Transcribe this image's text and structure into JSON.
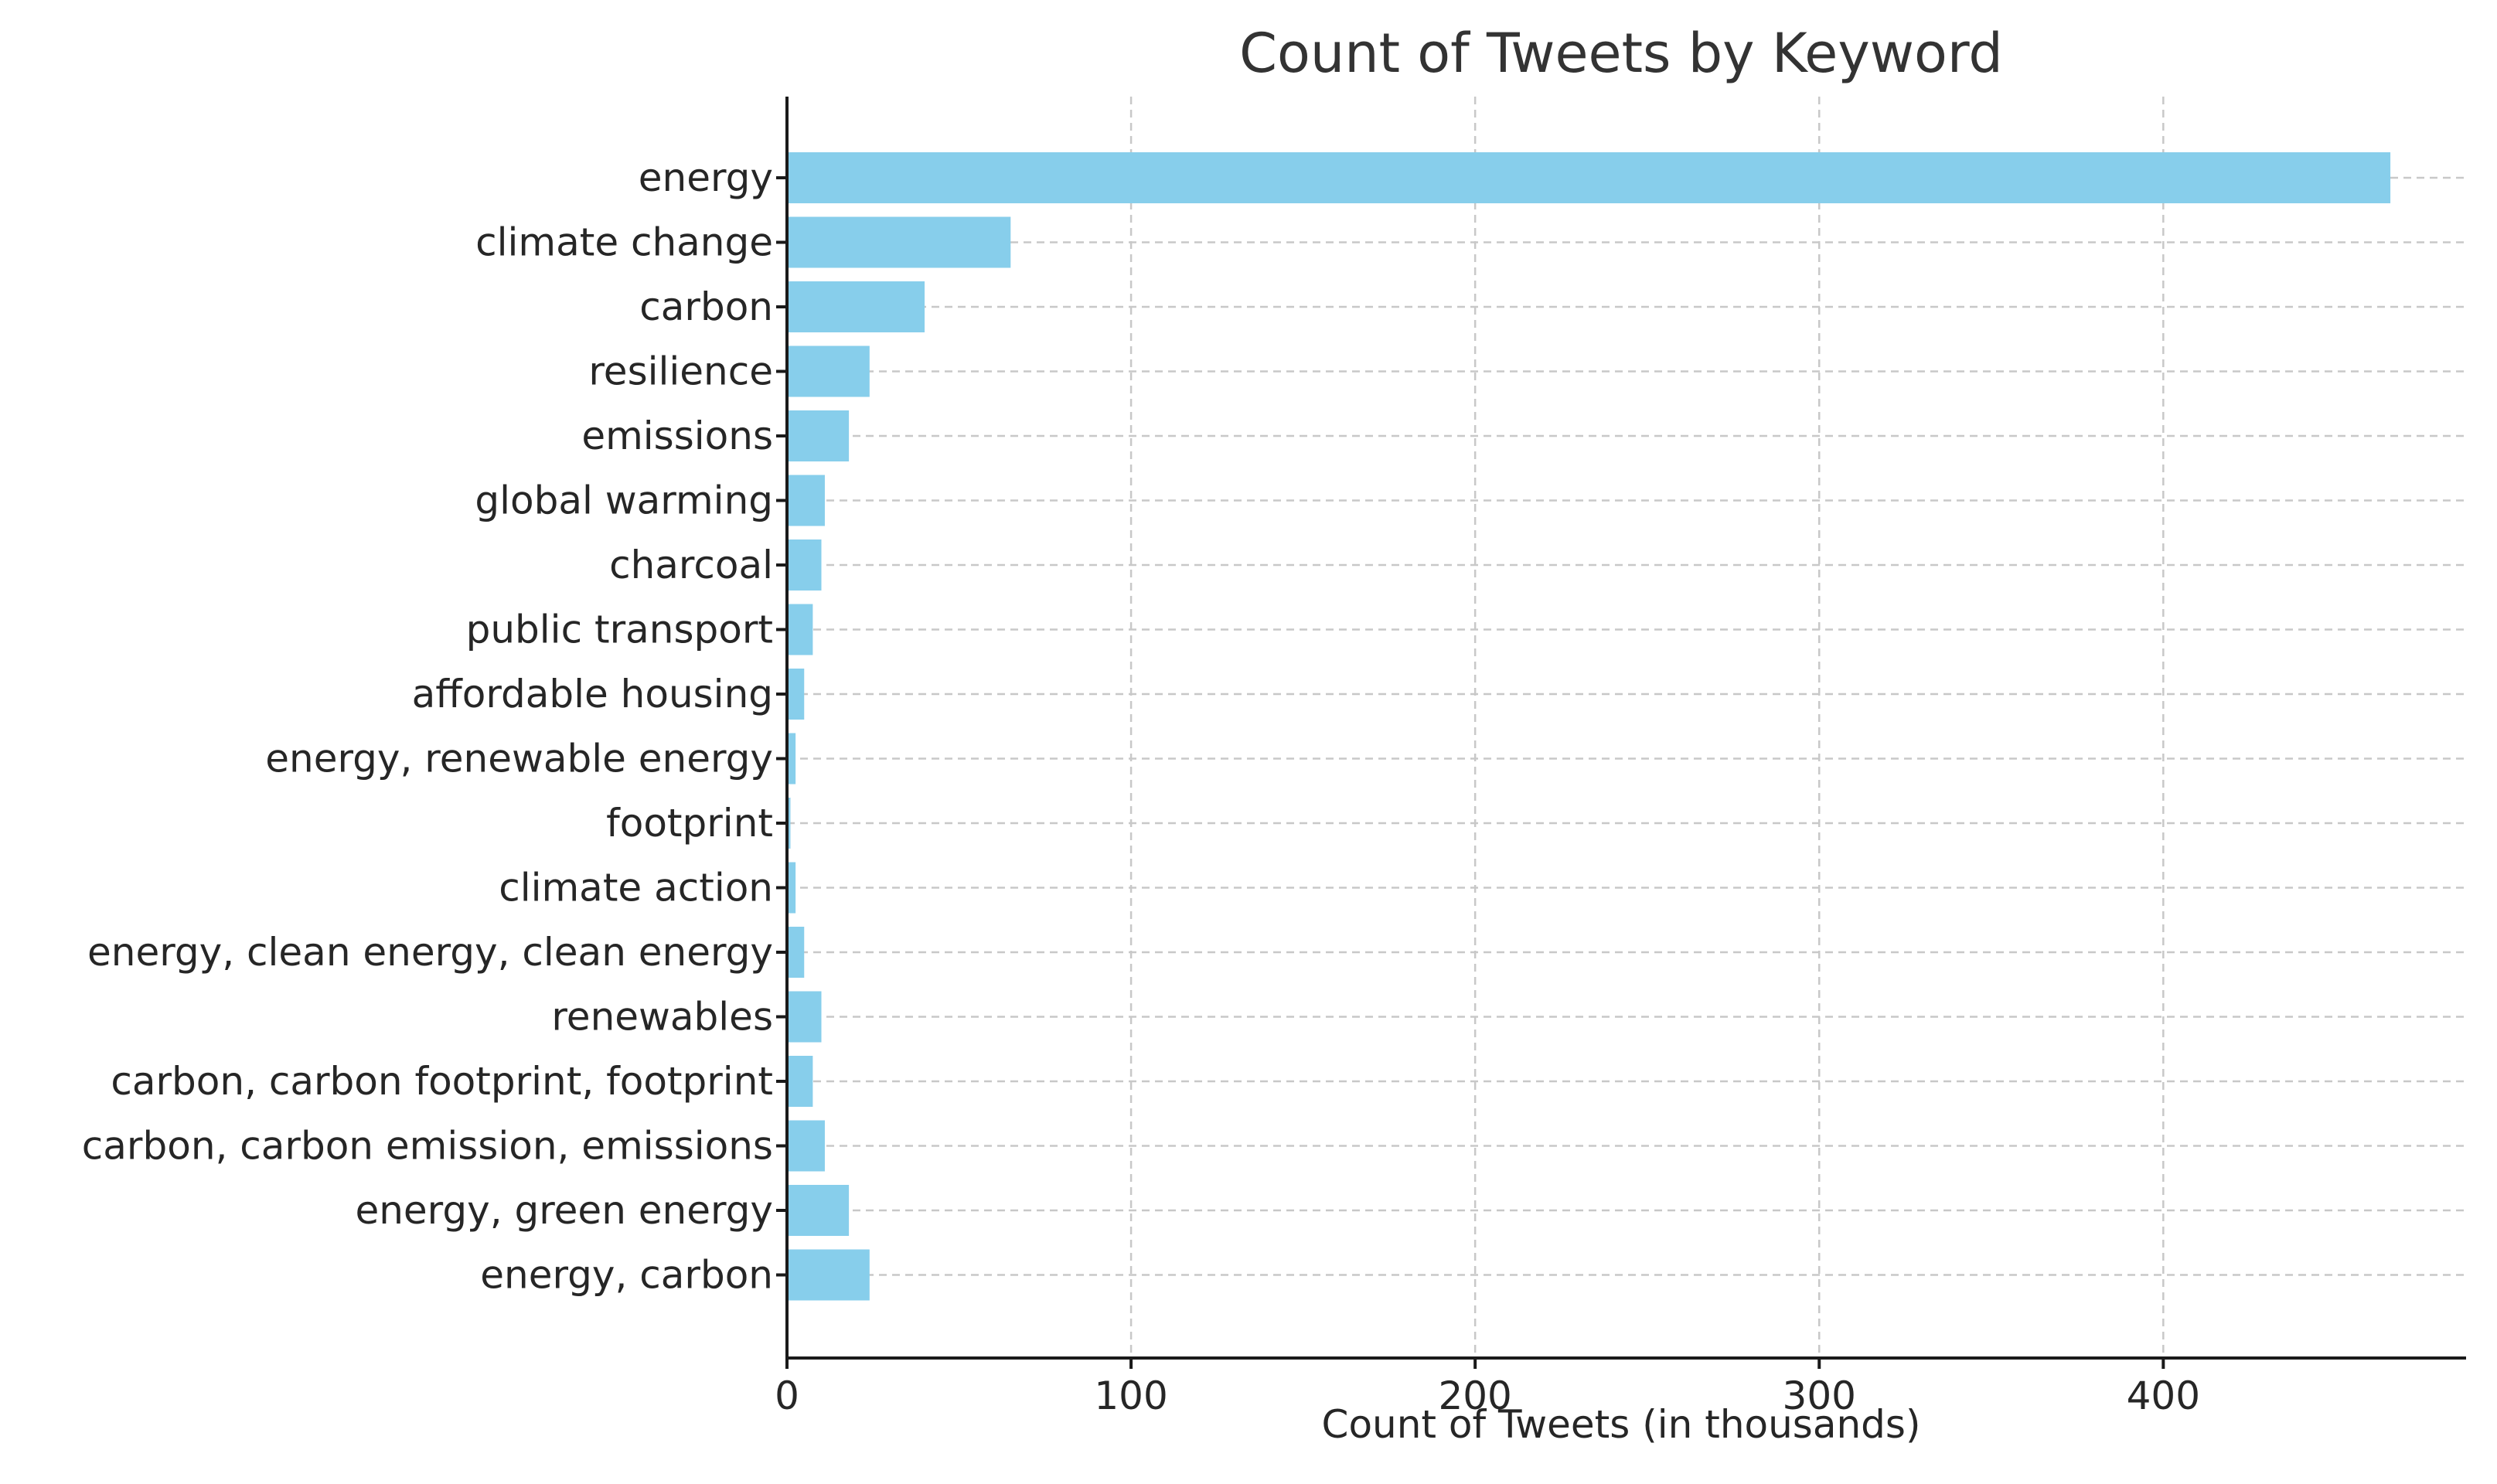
{
  "chart_data": {
    "type": "bar",
    "orientation": "horizontal",
    "title": "Count of Tweets by Keyword",
    "xlabel": "Count of Tweets (in thousands)",
    "ylabel": "",
    "categories": [
      "energy",
      "climate change",
      "carbon",
      "resilience",
      "emissions",
      "global warming",
      "charcoal",
      "public transport",
      "affordable housing",
      "energy, renewable energy",
      "footprint",
      "climate action",
      "energy, clean energy, clean energy",
      "renewables",
      "carbon, carbon footprint, footprint",
      "carbon, carbon emission, emissions",
      "energy, green energy",
      "energy, carbon"
    ],
    "values": [
      466,
      65,
      40,
      24,
      18,
      11,
      10,
      7.5,
      5,
      2.5,
      1,
      2.5,
      5,
      10,
      7.5,
      11,
      18,
      24
    ],
    "xlim": [
      0,
      488
    ],
    "xticks": [
      0,
      100,
      200,
      300,
      400
    ],
    "grid": true,
    "bar_color": "#87CEEB"
  }
}
